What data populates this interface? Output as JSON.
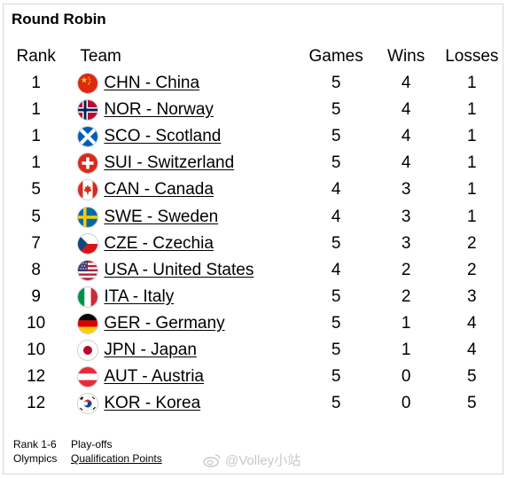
{
  "title": "Round Robin",
  "columns": {
    "rank": "Rank",
    "team": "Team",
    "games": "Games",
    "wins": "Wins",
    "losses": "Losses"
  },
  "rows": [
    {
      "rank": "1",
      "team": "CHN - China",
      "games": "5",
      "wins": "4",
      "losses": "1",
      "flag": "china-flag-icon"
    },
    {
      "rank": "1",
      "team": "NOR - Norway",
      "games": "5",
      "wins": "4",
      "losses": "1",
      "flag": "norway-flag-icon"
    },
    {
      "rank": "1",
      "team": "SCO - Scotland",
      "games": "5",
      "wins": "4",
      "losses": "1",
      "flag": "scotland-flag-icon"
    },
    {
      "rank": "1",
      "team": "SUI - Switzerland",
      "games": "5",
      "wins": "4",
      "losses": "1",
      "flag": "switzerland-flag-icon"
    },
    {
      "rank": "5",
      "team": "CAN - Canada",
      "games": "4",
      "wins": "3",
      "losses": "1",
      "flag": "canada-flag-icon"
    },
    {
      "rank": "5",
      "team": "SWE - Sweden",
      "games": "4",
      "wins": "3",
      "losses": "1",
      "flag": "sweden-flag-icon"
    },
    {
      "rank": "7",
      "team": "CZE - Czechia",
      "games": "5",
      "wins": "3",
      "losses": "2",
      "flag": "czechia-flag-icon"
    },
    {
      "rank": "8",
      "team": "USA - United States",
      "games": "4",
      "wins": "2",
      "losses": "2",
      "flag": "usa-flag-icon"
    },
    {
      "rank": "9",
      "team": "ITA - Italy",
      "games": "5",
      "wins": "2",
      "losses": "3",
      "flag": "italy-flag-icon"
    },
    {
      "rank": "10",
      "team": "GER - Germany",
      "games": "5",
      "wins": "1",
      "losses": "4",
      "flag": "germany-flag-icon"
    },
    {
      "rank": "10",
      "team": "JPN - Japan",
      "games": "5",
      "wins": "1",
      "losses": "4",
      "flag": "japan-flag-icon"
    },
    {
      "rank": "12",
      "team": "AUT - Austria",
      "games": "5",
      "wins": "0",
      "losses": "5",
      "flag": "austria-flag-icon"
    },
    {
      "rank": "12",
      "team": "KOR - Korea",
      "games": "5",
      "wins": "0",
      "losses": "5",
      "flag": "korea-flag-icon"
    }
  ],
  "legend": {
    "rank_range": "Rank 1-6",
    "playoffs": "Play-offs",
    "olympics": "Olympics",
    "qualification_points": "Qualification Points"
  },
  "watermark": "@Volley小站",
  "icons": {
    "watermark": "weibo-icon"
  }
}
